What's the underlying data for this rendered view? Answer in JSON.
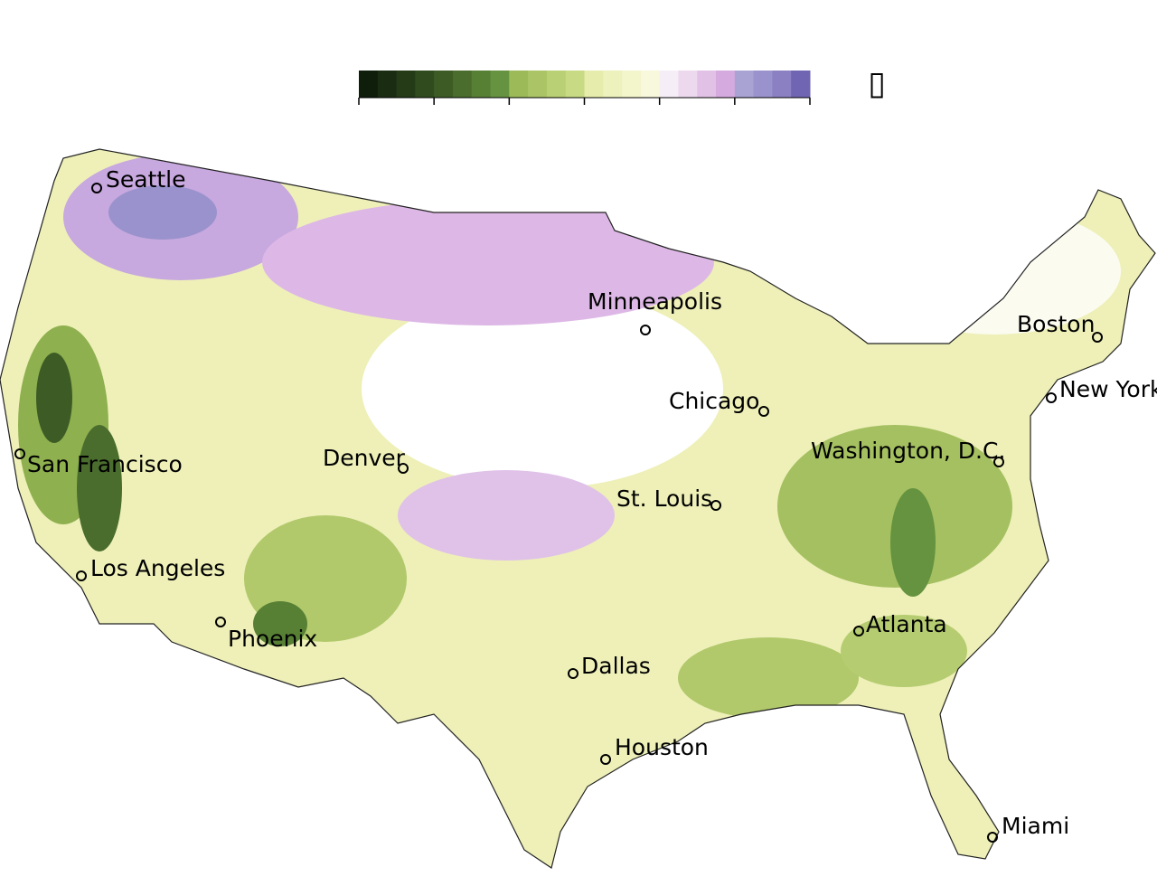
{
  "legend": {
    "colors": [
      "#0f1d0b",
      "#1a2c12",
      "#253b18",
      "#304b1e",
      "#3d5c25",
      "#4a6d2d",
      "#588035",
      "#66933f",
      "#9cbb58",
      "#abc566",
      "#bad074",
      "#c8da84",
      "#e6ecab",
      "#edf1bb",
      "#f3f5cb",
      "#f8f8dc",
      "#f6eef6",
      "#ecd9ee",
      "#e1c2e6",
      "#d5aade",
      "#a9a3d4",
      "#9a92cc",
      "#8a80c2",
      "#6f65b3"
    ],
    "label": "▯"
  },
  "cities": [
    {
      "name": "Seattle"
    },
    {
      "name": "Minneapolis"
    },
    {
      "name": "Boston"
    },
    {
      "name": "Chicago"
    },
    {
      "name": "New York"
    },
    {
      "name": "Washington, D.C."
    },
    {
      "name": "San Francisco"
    },
    {
      "name": "Denver"
    },
    {
      "name": "St. Louis"
    },
    {
      "name": "Los Angeles"
    },
    {
      "name": "Phoenix"
    },
    {
      "name": "Atlanta"
    },
    {
      "name": "Dallas"
    },
    {
      "name": "Houston"
    },
    {
      "name": "Miami"
    }
  ]
}
